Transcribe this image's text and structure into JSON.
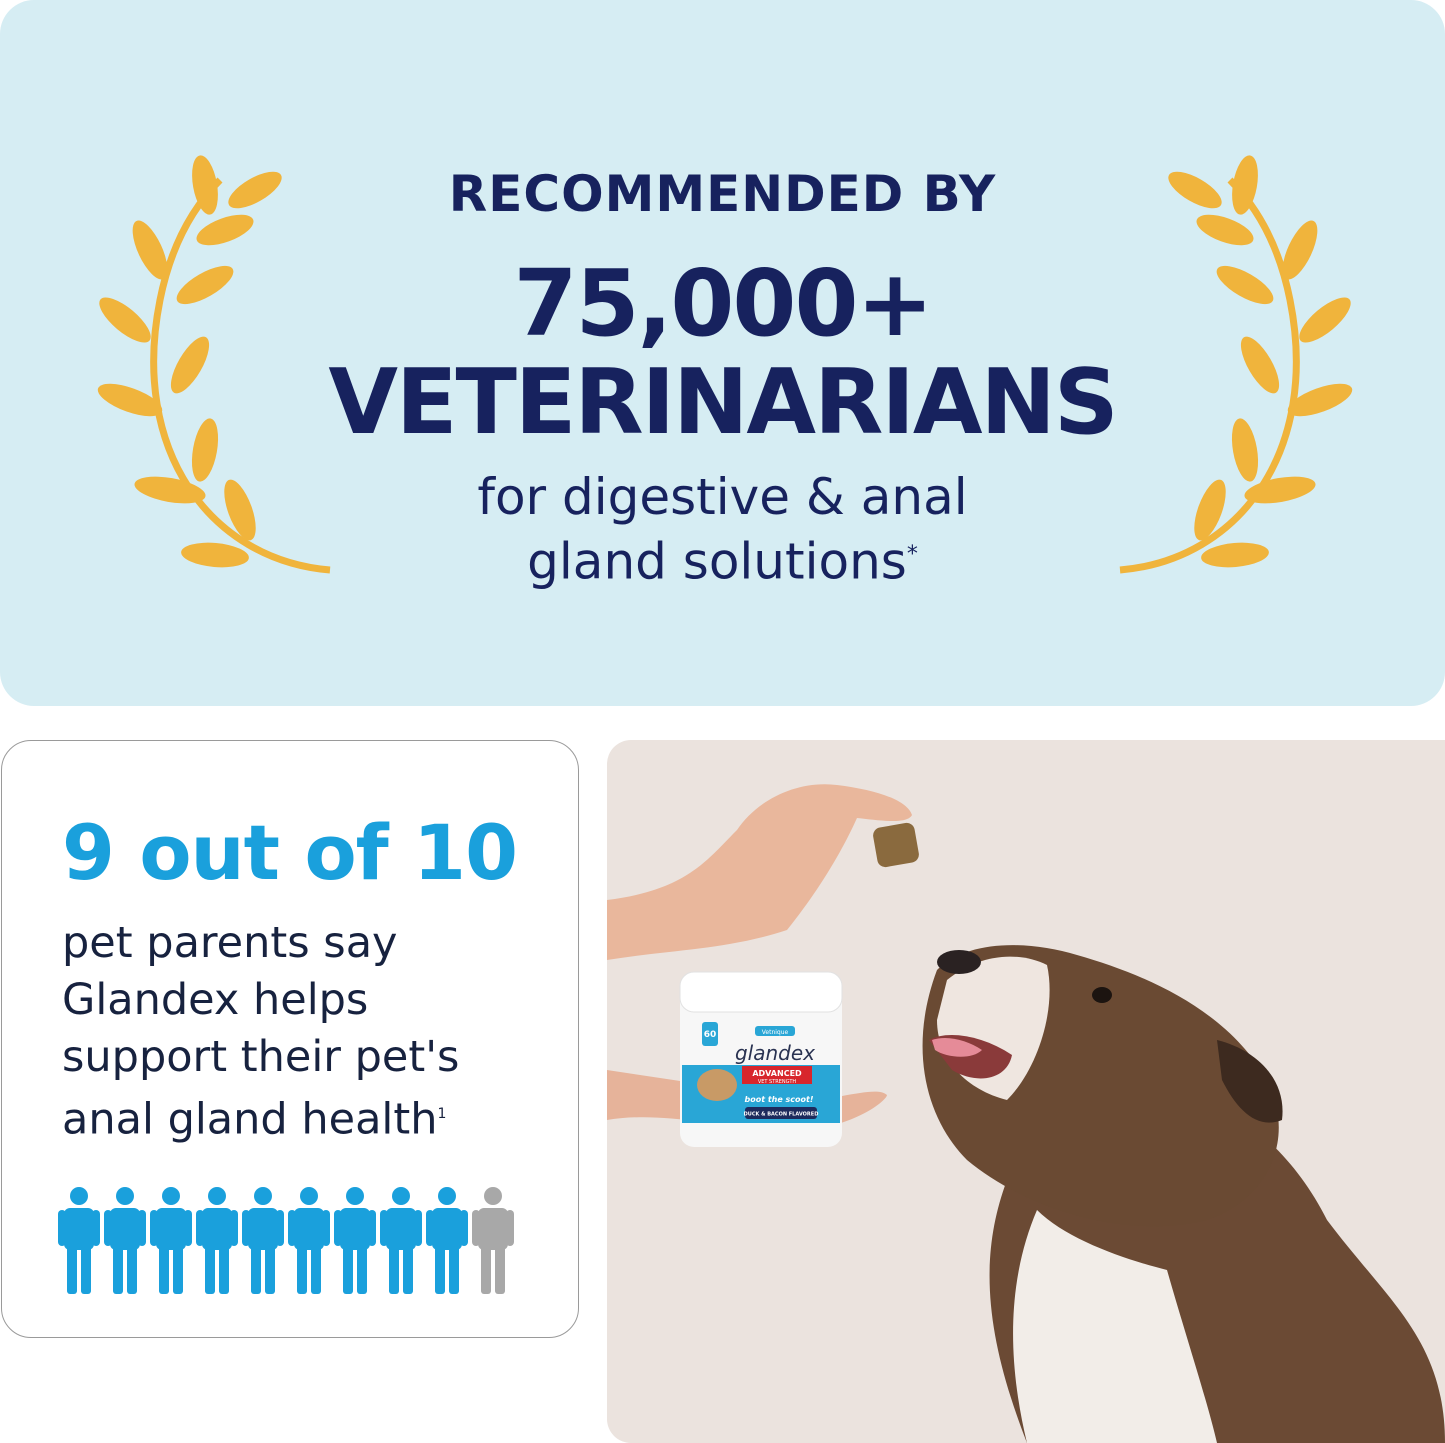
{
  "banner": {
    "line1": "RECOMMENDED BY",
    "line2": "75,000+",
    "line3": "VETERINARIANS",
    "line4a": "for digestive & anal",
    "line4b": "gland solutions",
    "footnote_mark": "*"
  },
  "stat": {
    "headline": "9 out of 10",
    "lines": [
      "pet parents say",
      "Glandex helps",
      "support their pet's",
      "anal gland health"
    ],
    "footnote_mark": "1",
    "people_total": 10,
    "people_highlighted": 9
  },
  "product": {
    "brand": "Vetnique",
    "name": "glandex",
    "subtitle": "ANAL GLAND SOFT CHEWS",
    "badge1": "ADVANCED",
    "badge2": "VET STRENGTH",
    "tagline": "boot the scoot!",
    "count": "60",
    "flavor": "DUCK & BACON FLAVORED"
  },
  "colors": {
    "navy": "#17225e",
    "blue": "#1aa0dc",
    "gold": "#f0b43c",
    "gray": "#a8a8a8",
    "banner_bg": "#d6edf3",
    "photo_bg": "#ebe3de"
  }
}
